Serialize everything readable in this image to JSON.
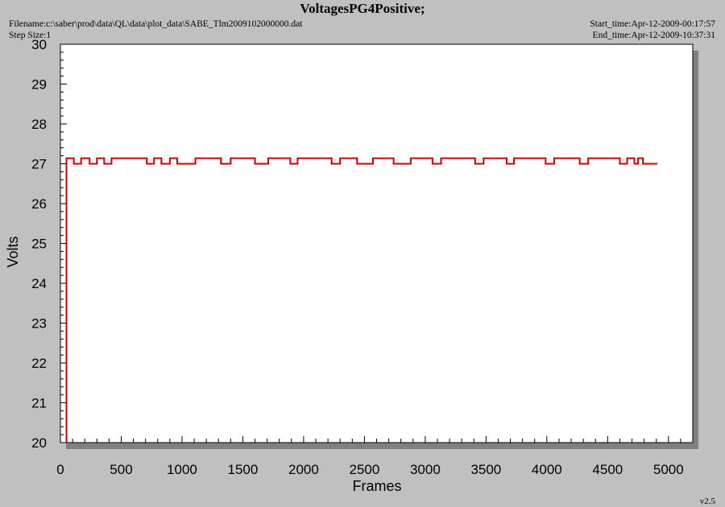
{
  "header": {
    "title": "VoltagesPG4Positive;",
    "filename": "Filename:c:\\saber\\prod\\data\\QL\\data\\plot_data\\SABE_Tlm2009102000000.dat",
    "step_size": "Step Size:1",
    "start_time": "Start_time:Apr-12-2009-00:17:57",
    "end_time": "End_time:Apr-12-2009-10:37:31"
  },
  "footer": {
    "version": "v2.5"
  },
  "colors": {
    "series": "#cc0000",
    "plot_bg": "#ffffff",
    "page_bg": "#c0c0c0",
    "shadow": "#808080"
  },
  "chart_data": {
    "type": "line",
    "title": "VoltagesPG4Positive;",
    "xlabel": "Frames",
    "ylabel": "Volts",
    "xlim": [
      0,
      5200
    ],
    "ylim": [
      20,
      30
    ],
    "x_ticks": [
      0,
      500,
      1000,
      1500,
      2000,
      2500,
      3000,
      3500,
      4000,
      4500,
      5000
    ],
    "y_ticks": [
      20,
      21,
      22,
      23,
      24,
      25,
      26,
      27,
      28,
      29,
      30
    ],
    "grid": false,
    "series": [
      {
        "x": [
          50,
          50,
          50,
          110,
          110,
          170,
          170,
          240,
          240,
          300,
          300,
          360,
          360,
          420,
          420,
          450,
          450,
          710,
          710,
          770,
          770,
          830,
          830,
          900,
          900,
          960,
          960,
          1110,
          1110,
          1320,
          1320,
          1400,
          1400,
          1600,
          1600,
          1710,
          1710,
          1890,
          1890,
          1950,
          1950,
          2230,
          2230,
          2300,
          2300,
          2440,
          2440,
          2570,
          2570,
          2740,
          2740,
          2880,
          2880,
          3060,
          3060,
          3130,
          3130,
          3410,
          3410,
          3480,
          3480,
          3670,
          3670,
          3730,
          3730,
          3990,
          3990,
          4060,
          4060,
          4270,
          4270,
          4340,
          4340,
          4600,
          4600,
          4660,
          4660,
          4720,
          4720,
          4750,
          4750,
          4790,
          4790,
          4820,
          4820,
          4910
        ],
        "y": [
          20,
          27,
          27.14,
          27.14,
          27.0,
          27.0,
          27.14,
          27.14,
          27.0,
          27.0,
          27.14,
          27.14,
          27.0,
          27.0,
          27.14,
          27.14,
          27.14,
          27.14,
          27.0,
          27.0,
          27.14,
          27.14,
          27.0,
          27.0,
          27.14,
          27.14,
          27.0,
          27.0,
          27.14,
          27.14,
          27.0,
          27.0,
          27.14,
          27.14,
          27.0,
          27.0,
          27.14,
          27.14,
          27.0,
          27.0,
          27.14,
          27.14,
          27.0,
          27.0,
          27.14,
          27.14,
          27.0,
          27.0,
          27.14,
          27.14,
          27.0,
          27.0,
          27.14,
          27.14,
          27.0,
          27.0,
          27.14,
          27.14,
          27.0,
          27.0,
          27.14,
          27.14,
          27.0,
          27.0,
          27.14,
          27.14,
          27.0,
          27.0,
          27.14,
          27.14,
          27.0,
          27.0,
          27.14,
          27.14,
          27.0,
          27.0,
          27.14,
          27.14,
          27.0,
          27.0,
          27.14,
          27.14,
          27.0,
          27.0,
          27.0,
          27.0
        ]
      }
    ]
  }
}
